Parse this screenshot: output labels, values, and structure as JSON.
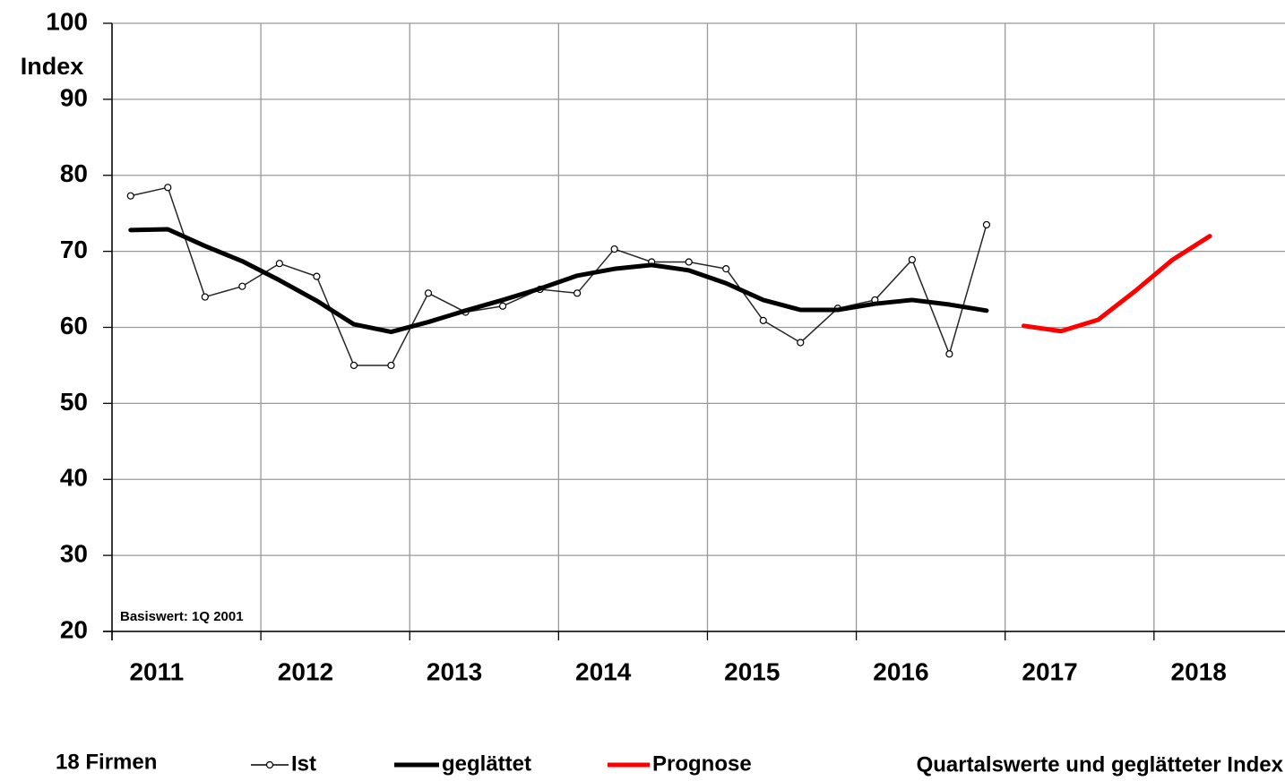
{
  "chart_data": {
    "type": "line",
    "ylabel": "Index",
    "annotation": "Basiswert: 1Q 2001",
    "footer_left": "18 Firmen",
    "footer_right": "Quartalswerte und geglätteter Index",
    "xlim": [
      2011,
      2018.88
    ],
    "xticks": [
      2011,
      2012,
      2013,
      2014,
      2015,
      2016,
      2017,
      2018
    ],
    "ylim": [
      20,
      100
    ],
    "yticks": [
      20,
      30,
      40,
      50,
      60,
      70,
      80,
      90,
      100
    ],
    "grid": true,
    "series": [
      {
        "name": "Ist",
        "color": "#000000",
        "marker": "circle",
        "width": 1.5,
        "x": [
          2011.125,
          2011.375,
          2011.625,
          2011.875,
          2012.125,
          2012.375,
          2012.625,
          2012.875,
          2013.125,
          2013.375,
          2013.625,
          2013.875,
          2014.125,
          2014.375,
          2014.625,
          2014.875,
          2015.125,
          2015.375,
          2015.625,
          2015.875,
          2016.125,
          2016.375,
          2016.625,
          2016.875
        ],
        "values": [
          77.3,
          78.4,
          64.0,
          65.4,
          68.4,
          66.7,
          55.0,
          55.0,
          64.5,
          62.0,
          62.8,
          65.0,
          64.5,
          70.3,
          68.6,
          68.6,
          67.7,
          60.9,
          58.0,
          62.5,
          63.6,
          68.9,
          56.5,
          73.5
        ]
      },
      {
        "name": "geglättet",
        "color": "#000000",
        "width": 5,
        "x": [
          2011.125,
          2011.375,
          2011.625,
          2011.875,
          2012.125,
          2012.375,
          2012.625,
          2012.875,
          2013.125,
          2013.375,
          2013.625,
          2013.875,
          2014.125,
          2014.375,
          2014.625,
          2014.875,
          2015.125,
          2015.375,
          2015.625,
          2015.875,
          2016.125,
          2016.375,
          2016.625,
          2016.875
        ],
        "values": [
          72.8,
          72.9,
          70.7,
          68.7,
          66.2,
          63.5,
          60.4,
          59.4,
          60.7,
          62.2,
          63.6,
          65.1,
          66.8,
          67.7,
          68.2,
          67.5,
          65.8,
          63.6,
          62.3,
          62.3,
          63.1,
          63.6,
          63.0,
          62.2
        ]
      },
      {
        "name": "Prognose",
        "color": "#ff0000",
        "width": 5,
        "x": [
          2017.125,
          2017.375,
          2017.625,
          2017.875,
          2018.125,
          2018.375
        ],
        "values": [
          60.2,
          59.5,
          61.0,
          64.8,
          68.9,
          72.0
        ]
      }
    ]
  }
}
